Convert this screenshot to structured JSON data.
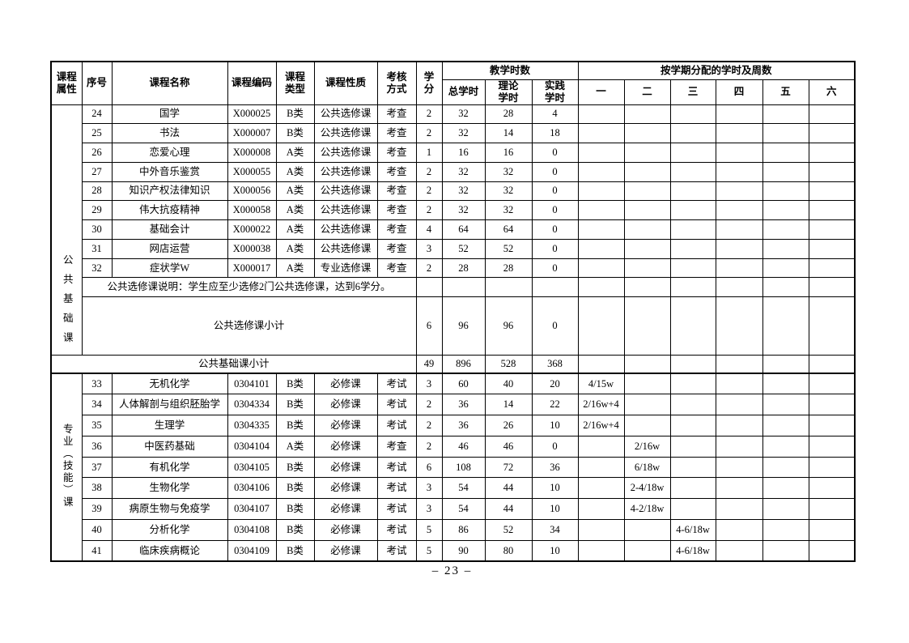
{
  "footer": {
    "page_number": "– 23 –"
  },
  "table": {
    "headers": {
      "attribute": "课程\n属性",
      "seq": "序号",
      "course_name": "课程名称",
      "course_code": "课程编码",
      "course_type": "课程\n类型",
      "course_nature": "课程性质",
      "assessment": "考核\n方式",
      "credits": "学\n分",
      "teaching_hours_group": "教学时数",
      "total_hours": "总学时",
      "theory_hours": "理论\n学时",
      "practice_hours": "实践\n学时",
      "semester_group": "按学期分配的学时及周数",
      "semesters": [
        "一",
        "二",
        "三",
        "四",
        "五",
        "六"
      ]
    },
    "sections": [
      {
        "attribute_label": "公共基础课",
        "rows": [
          {
            "no": "24",
            "name": "国学",
            "code": "X000025",
            "type": "B类",
            "nature": "公共选修课",
            "assess": "考查",
            "credit": "2",
            "total": "32",
            "theory": "28",
            "practice": "4",
            "sem": [
              "",
              "",
              "",
              "",
              "",
              ""
            ]
          },
          {
            "no": "25",
            "name": "书法",
            "code": "X000007",
            "type": "B类",
            "nature": "公共选修课",
            "assess": "考查",
            "credit": "2",
            "total": "32",
            "theory": "14",
            "practice": "18",
            "sem": [
              "",
              "",
              "",
              "",
              "",
              ""
            ]
          },
          {
            "no": "26",
            "name": "恋爱心理",
            "code": "X000008",
            "type": "A类",
            "nature": "公共选修课",
            "assess": "考查",
            "credit": "1",
            "total": "16",
            "theory": "16",
            "practice": "0",
            "sem": [
              "",
              "",
              "",
              "",
              "",
              ""
            ]
          },
          {
            "no": "27",
            "name": "中外音乐鉴赏",
            "code": "X000055",
            "type": "A类",
            "nature": "公共选修课",
            "assess": "考查",
            "credit": "2",
            "total": "32",
            "theory": "32",
            "practice": "0",
            "sem": [
              "",
              "",
              "",
              "",
              "",
              ""
            ]
          },
          {
            "no": "28",
            "name": "知识产权法律知识",
            "code": "X000056",
            "type": "A类",
            "nature": "公共选修课",
            "assess": "考查",
            "credit": "2",
            "total": "32",
            "theory": "32",
            "practice": "0",
            "sem": [
              "",
              "",
              "",
              "",
              "",
              ""
            ]
          },
          {
            "no": "29",
            "name": "伟大抗疫精神",
            "code": "X000058",
            "type": "A类",
            "nature": "公共选修课",
            "assess": "考查",
            "credit": "2",
            "total": "32",
            "theory": "32",
            "practice": "0",
            "sem": [
              "",
              "",
              "",
              "",
              "",
              ""
            ]
          },
          {
            "no": "30",
            "name": "基础会计",
            "code": "X000022",
            "type": "A类",
            "nature": "公共选修课",
            "assess": "考查",
            "credit": "4",
            "total": "64",
            "theory": "64",
            "practice": "0",
            "sem": [
              "",
              "",
              "",
              "",
              "",
              ""
            ]
          },
          {
            "no": "31",
            "name": "网店运营",
            "code": "X000038",
            "type": "A类",
            "nature": "公共选修课",
            "assess": "考查",
            "credit": "3",
            "total": "52",
            "theory": "52",
            "practice": "0",
            "sem": [
              "",
              "",
              "",
              "",
              "",
              ""
            ]
          },
          {
            "no": "32",
            "name": "症状学W",
            "code": "X000017",
            "type": "A类",
            "nature": "专业选修课",
            "assess": "考查",
            "credit": "2",
            "total": "28",
            "theory": "28",
            "practice": "0",
            "sem": [
              "",
              "",
              "",
              "",
              "",
              ""
            ]
          }
        ],
        "note": "公共选修课说明：学生应至少选修2门公共选修课，达到6学分。",
        "elective_subtotal": {
          "label": "公共选修课小计",
          "credit": "6",
          "total": "96",
          "theory": "96",
          "practice": "0"
        },
        "section_subtotal": {
          "label": "公共基础课小计",
          "credit": "49",
          "total": "896",
          "theory": "528",
          "practice": "368"
        }
      },
      {
        "attribute_label": "专业（技能）课",
        "rows": [
          {
            "no": "33",
            "name": "无机化学",
            "code": "0304101",
            "type": "B类",
            "nature": "必修课",
            "assess": "考试",
            "credit": "3",
            "total": "60",
            "theory": "40",
            "practice": "20",
            "sem": [
              "4/15w",
              "",
              "",
              "",
              "",
              ""
            ]
          },
          {
            "no": "34",
            "name": "人体解剖与组织胚胎学",
            "code": "0304334",
            "type": "B类",
            "nature": "必修课",
            "assess": "考试",
            "credit": "2",
            "total": "36",
            "theory": "14",
            "practice": "22",
            "sem": [
              "2/16w+4",
              "",
              "",
              "",
              "",
              ""
            ]
          },
          {
            "no": "35",
            "name": "生理学",
            "code": "0304335",
            "type": "B类",
            "nature": "必修课",
            "assess": "考试",
            "credit": "2",
            "total": "36",
            "theory": "26",
            "practice": "10",
            "sem": [
              "2/16w+4",
              "",
              "",
              "",
              "",
              ""
            ]
          },
          {
            "no": "36",
            "name": "中医药基础",
            "code": "0304104",
            "type": "A类",
            "nature": "必修课",
            "assess": "考查",
            "credit": "2",
            "total": "46",
            "theory": "46",
            "practice": "0",
            "sem": [
              "",
              "2/16w",
              "",
              "",
              "",
              ""
            ]
          },
          {
            "no": "37",
            "name": "有机化学",
            "code": "0304105",
            "type": "B类",
            "nature": "必修课",
            "assess": "考试",
            "credit": "6",
            "total": "108",
            "theory": "72",
            "practice": "36",
            "sem": [
              "",
              "6/18w",
              "",
              "",
              "",
              ""
            ]
          },
          {
            "no": "38",
            "name": "生物化学",
            "code": "0304106",
            "type": "B类",
            "nature": "必修课",
            "assess": "考试",
            "credit": "3",
            "total": "54",
            "theory": "44",
            "practice": "10",
            "sem": [
              "",
              "2-4/18w",
              "",
              "",
              "",
              ""
            ]
          },
          {
            "no": "39",
            "name": "病原生物与免疫学",
            "code": "0304107",
            "type": "B类",
            "nature": "必修课",
            "assess": "考试",
            "credit": "3",
            "total": "54",
            "theory": "44",
            "practice": "10",
            "sem": [
              "",
              "4-2/18w",
              "",
              "",
              "",
              ""
            ]
          },
          {
            "no": "40",
            "name": "分析化学",
            "code": "0304108",
            "type": "B类",
            "nature": "必修课",
            "assess": "考试",
            "credit": "5",
            "total": "86",
            "theory": "52",
            "practice": "34",
            "sem": [
              "",
              "",
              "4-6/18w",
              "",
              "",
              ""
            ]
          },
          {
            "no": "41",
            "name": "临床疾病概论",
            "code": "0304109",
            "type": "B类",
            "nature": "必修课",
            "assess": "考试",
            "credit": "5",
            "total": "90",
            "theory": "80",
            "practice": "10",
            "sem": [
              "",
              "",
              "4-6/18w",
              "",
              "",
              ""
            ]
          }
        ]
      }
    ]
  }
}
